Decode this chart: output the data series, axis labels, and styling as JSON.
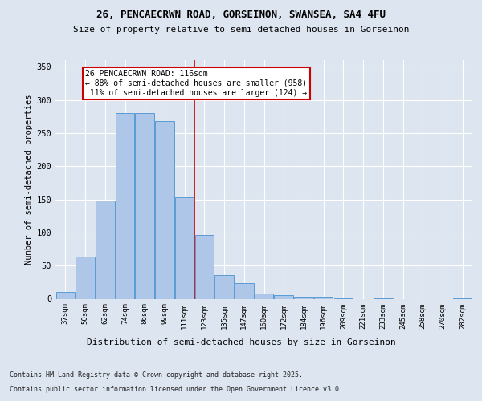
{
  "title1": "26, PENCAECRWN ROAD, GORSEINON, SWANSEA, SA4 4FU",
  "title2": "Size of property relative to semi-detached houses in Gorseinon",
  "xlabel": "Distribution of semi-detached houses by size in Gorseinon",
  "ylabel": "Number of semi-detached properties",
  "categories": [
    "37sqm",
    "50sqm",
    "62sqm",
    "74sqm",
    "86sqm",
    "99sqm",
    "111sqm",
    "123sqm",
    "135sqm",
    "147sqm",
    "160sqm",
    "172sqm",
    "184sqm",
    "196sqm",
    "209sqm",
    "221sqm",
    "233sqm",
    "245sqm",
    "258sqm",
    "270sqm",
    "282sqm"
  ],
  "values": [
    10,
    63,
    148,
    280,
    280,
    268,
    153,
    96,
    36,
    23,
    8,
    5,
    3,
    3,
    1,
    0,
    1,
    0,
    0,
    0,
    1
  ],
  "bar_color": "#aec6e8",
  "bar_edge_color": "#5b9bd5",
  "vline_x": 6.5,
  "vline_color": "#cc0000",
  "annotation_text": "26 PENCAECRWN ROAD: 116sqm\n← 88% of semi-detached houses are smaller (958)\n 11% of semi-detached houses are larger (124) →",
  "annotation_box_color": "#cc0000",
  "ylim": [
    0,
    360
  ],
  "yticks": [
    0,
    50,
    100,
    150,
    200,
    250,
    300,
    350
  ],
  "footer1": "Contains HM Land Registry data © Crown copyright and database right 2025.",
  "footer2": "Contains public sector information licensed under the Open Government Licence v3.0.",
  "bg_color": "#dde5f0",
  "plot_bg_color": "#dde5f0"
}
